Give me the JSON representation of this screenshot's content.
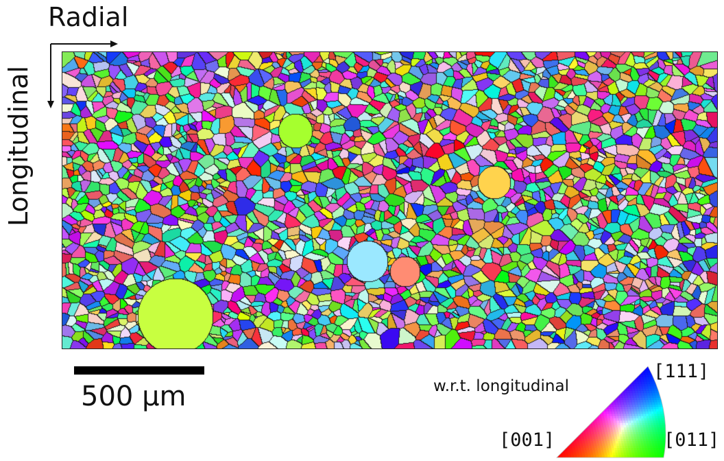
{
  "axes": {
    "horizontal_label": "Radial",
    "vertical_label": "Longitudinal"
  },
  "map": {
    "description_icon": "ebsd-grain-map",
    "boundary_color": "#1a1a1a"
  },
  "scale_bar": {
    "label": "500 μm",
    "color": "#000000"
  },
  "legend": {
    "title": "w.r.t. longitudinal",
    "corner_111": "[111]",
    "corner_001": "[001]",
    "corner_011": "[011]",
    "color_001": "#ff0000",
    "color_011": "#00ff00",
    "color_111": "#0000ff"
  }
}
